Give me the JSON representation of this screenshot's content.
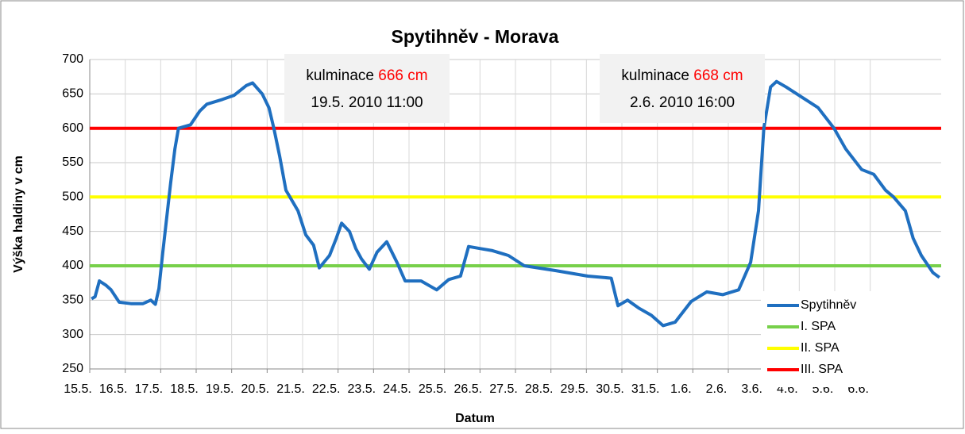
{
  "chart_data": {
    "type": "line",
    "title": "Spytihněv - Morava",
    "x_label": "Datum",
    "y_label": "Výška haldiny v cm",
    "xlim": [
      0,
      24
    ],
    "ylim": [
      250,
      700
    ],
    "yticks": [
      250,
      300,
      350,
      400,
      450,
      500,
      550,
      600,
      650,
      700
    ],
    "xticks": [
      {
        "value": 0,
        "label": "15.5."
      },
      {
        "value": 1,
        "label": "16.5."
      },
      {
        "value": 2,
        "label": "17.5."
      },
      {
        "value": 3,
        "label": "18.5."
      },
      {
        "value": 4,
        "label": "19.5."
      },
      {
        "value": 5,
        "label": "20.5."
      },
      {
        "value": 6,
        "label": "21.5."
      },
      {
        "value": 7,
        "label": "22.5."
      },
      {
        "value": 8,
        "label": "23.5."
      },
      {
        "value": 9,
        "label": "24.5."
      },
      {
        "value": 10,
        "label": "25.5."
      },
      {
        "value": 11,
        "label": "26.5."
      },
      {
        "value": 12,
        "label": "27.5."
      },
      {
        "value": 13,
        "label": "28.5."
      },
      {
        "value": 14,
        "label": "29.5."
      },
      {
        "value": 15,
        "label": "30.5."
      },
      {
        "value": 16,
        "label": "31.5."
      },
      {
        "value": 17,
        "label": "1.6."
      },
      {
        "value": 18,
        "label": "2.6."
      },
      {
        "value": 19,
        "label": "3.6."
      },
      {
        "value": 20,
        "label": "4.6."
      },
      {
        "value": 21,
        "label": "5.6."
      },
      {
        "value": 22,
        "label": "6.6."
      }
    ],
    "grid": true,
    "legend": "lower right",
    "series": [
      {
        "name": "Spytihněv",
        "color": "#1f6fc0",
        "x": [
          0.05,
          0.15,
          0.27,
          0.45,
          0.6,
          0.83,
          1.16,
          1.5,
          1.72,
          1.85,
          1.95,
          2.06,
          2.17,
          2.28,
          2.4,
          2.5,
          2.84,
          3.1,
          3.3,
          3.74,
          4.07,
          4.41,
          4.59,
          4.86,
          5.05,
          5.19,
          5.35,
          5.53,
          5.87,
          6.09,
          6.31,
          6.47,
          6.76,
          6.95,
          7.1,
          7.32,
          7.5,
          7.66,
          7.88,
          8.1,
          8.37,
          8.66,
          8.89,
          9.34,
          9.78,
          10.12,
          10.45,
          10.68,
          11.01,
          11.35,
          11.8,
          12.25,
          13.14,
          14.04,
          14.7,
          14.89,
          15.16,
          15.49,
          15.83,
          16.16,
          16.5,
          16.95,
          17.39,
          17.84,
          18.29,
          18.63,
          18.85,
          19.0,
          19.19,
          19.36,
          19.63,
          20.08,
          20.53,
          20.98,
          21.31,
          21.76,
          22.1,
          22.43,
          22.66,
          22.99,
          23.21,
          23.44,
          23.77,
          23.95
        ],
        "values": [
          352,
          355,
          378,
          372,
          365,
          347,
          345,
          345,
          350,
          344,
          367,
          420,
          470,
          520,
          570,
          600,
          605,
          625,
          635,
          642,
          648,
          662,
          666,
          650,
          630,
          600,
          560,
          510,
          480,
          445,
          430,
          397,
          415,
          440,
          462,
          450,
          425,
          410,
          395,
          420,
          435,
          405,
          378,
          378,
          365,
          380,
          385,
          428,
          425,
          422,
          415,
          400,
          393,
          385,
          382,
          342,
          350,
          338,
          328,
          313,
          318,
          348,
          362,
          358,
          365,
          405,
          480,
          600,
          660,
          668,
          660,
          645,
          630,
          600,
          570,
          540,
          533,
          510,
          500,
          480,
          440,
          415,
          390,
          383
        ]
      },
      {
        "name": "I. SPA",
        "color": "#77d04a",
        "x": [
          0,
          24
        ],
        "values": [
          400,
          400
        ]
      },
      {
        "name": "II. SPA",
        "color": "#ffff00",
        "x": [
          0,
          24
        ],
        "values": [
          500,
          500
        ]
      },
      {
        "name": "III. SPA",
        "color": "#ff0000",
        "x": [
          0,
          24
        ],
        "values": [
          600,
          600
        ]
      }
    ],
    "annotations": [
      {
        "text": "kulminace",
        "value_text": "666 cm",
        "date": "19.5. 2010 11:00"
      },
      {
        "text": "kulminace",
        "value_text": "668 cm",
        "date": "2.6. 2010 16:00"
      }
    ]
  }
}
